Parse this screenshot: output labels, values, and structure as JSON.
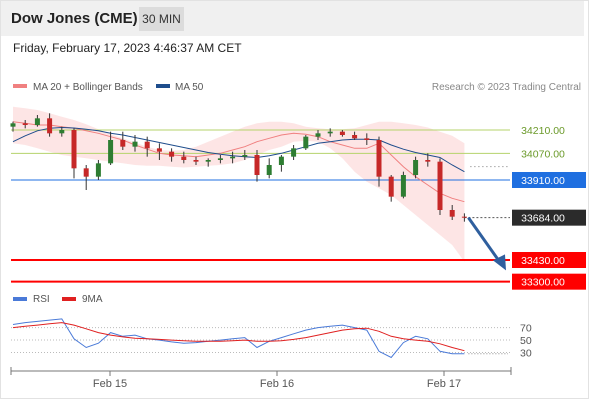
{
  "header": {
    "title": "Dow Jones (CME)",
    "interval": "30 MIN",
    "datetime": "Friday, February 17, 2023 4:46:37 AM CET"
  },
  "legend": {
    "ma20_label": "MA 20 + Bollinger Bands",
    "ma50_label": "MA 50",
    "copyright": "Research © 2023 Trading Central",
    "rsi_label": "RSI",
    "rsi_ma_label": "9MA"
  },
  "colors": {
    "candle_up": "#2e7d32",
    "candle_down": "#c62828",
    "ma20": "#f08080",
    "ma50": "#1e4d8c",
    "bollinger_fill": "#fde0e0",
    "resistance": "#b5d36b",
    "pivot": "#1f6fe0",
    "support": "#ff0000",
    "forecast_arrow": "#2f5f9e",
    "last_price_bg": "#2b2b2b",
    "rsi": "#4a7ad8",
    "rsi_ma": "#e02020"
  },
  "chart_data": [
    {
      "type": "candlestick",
      "title": "Dow Jones (CME)",
      "interval": "30 MIN",
      "x_labels": [
        "Feb 15",
        "Feb 16",
        "Feb 17"
      ],
      "ylim": [
        33250,
        34330
      ],
      "levels": [
        {
          "price": 34210,
          "label": "34210.00",
          "kind": "resistance"
        },
        {
          "price": 34070,
          "label": "34070.00",
          "kind": "resistance"
        },
        {
          "price": 33910,
          "label": "33910.00",
          "kind": "pivot"
        },
        {
          "price": 33684,
          "label": "33684.00",
          "kind": "last"
        },
        {
          "price": 33430,
          "label": "33430.00",
          "kind": "support"
        },
        {
          "price": 33300,
          "label": "33300.00",
          "kind": "support"
        }
      ],
      "forecast": {
        "from": 33684,
        "to": 33380,
        "direction": "down"
      },
      "series": [
        {
          "name": "MA 20 + Bollinger Bands",
          "indicator": "ma20",
          "values": [
            34260,
            34250,
            34240,
            34240,
            34230,
            34220,
            34205,
            34190,
            34170,
            34150,
            34120,
            34095,
            34070,
            34060,
            34055,
            34050,
            34060,
            34070,
            34090,
            34110,
            34140,
            34160,
            34180,
            34190,
            34185,
            34170,
            34140,
            34120,
            34100,
            34100,
            34130,
            34060,
            33990,
            33930,
            33880,
            33830,
            33800,
            33780
          ],
          "upper": [
            34350,
            34340,
            34330,
            34310,
            34290,
            34270,
            34245,
            34215,
            34185,
            34160,
            34135,
            34110,
            34090,
            34085,
            34090,
            34110,
            34140,
            34170,
            34200,
            34230,
            34250,
            34260,
            34260,
            34250,
            34230,
            34220,
            34215,
            34215,
            34220,
            34240,
            34260,
            34260,
            34250,
            34240,
            34225,
            34200,
            34175,
            34130
          ],
          "lower": [
            34130,
            34120,
            34100,
            34080,
            34060,
            34050,
            34040,
            34030,
            34020,
            34010,
            34000,
            33995,
            33995,
            33990,
            33985,
            33990,
            33995,
            34000,
            34010,
            34030,
            34060,
            34090,
            34110,
            34140,
            34145,
            34140,
            34100,
            34040,
            33960,
            33900,
            33860,
            33820,
            33760,
            33700,
            33640,
            33580,
            33520,
            33420
          ]
        },
        {
          "name": "MA 50",
          "indicator": "ma50",
          "values": [
            34140,
            34175,
            34205,
            34220,
            34225,
            34222,
            34215,
            34205,
            34190,
            34180,
            34165,
            34150,
            34135,
            34120,
            34105,
            34090,
            34075,
            34065,
            34055,
            34050,
            34045,
            34055,
            34070,
            34090,
            34110,
            34130,
            34140,
            34150,
            34155,
            34155,
            34150,
            34120,
            34095,
            34075,
            34060,
            34045,
            34000,
            33960
          ]
        }
      ],
      "candles": [
        {
          "o": 34230,
          "h": 34260,
          "l": 34200,
          "c": 34250
        },
        {
          "o": 34250,
          "h": 34270,
          "l": 34220,
          "c": 34240
        },
        {
          "o": 34240,
          "h": 34300,
          "l": 34230,
          "c": 34280
        },
        {
          "o": 34280,
          "h": 34310,
          "l": 34170,
          "c": 34190
        },
        {
          "o": 34190,
          "h": 34230,
          "l": 34170,
          "c": 34210
        },
        {
          "o": 34210,
          "h": 34220,
          "l": 33920,
          "c": 33980
        },
        {
          "o": 33980,
          "h": 34000,
          "l": 33850,
          "c": 33930
        },
        {
          "o": 33930,
          "h": 34030,
          "l": 33910,
          "c": 34010
        },
        {
          "o": 34010,
          "h": 34200,
          "l": 34000,
          "c": 34150
        },
        {
          "o": 34150,
          "h": 34200,
          "l": 34090,
          "c": 34110
        },
        {
          "o": 34110,
          "h": 34180,
          "l": 34080,
          "c": 34140
        },
        {
          "o": 34140,
          "h": 34170,
          "l": 34050,
          "c": 34100
        },
        {
          "o": 34100,
          "h": 34130,
          "l": 34030,
          "c": 34080
        },
        {
          "o": 34080,
          "h": 34100,
          "l": 34020,
          "c": 34050
        },
        {
          "o": 34050,
          "h": 34080,
          "l": 34010,
          "c": 34030
        },
        {
          "o": 34030,
          "h": 34050,
          "l": 34000,
          "c": 34020
        },
        {
          "o": 34020,
          "h": 34040,
          "l": 33990,
          "c": 34030
        },
        {
          "o": 34030,
          "h": 34060,
          "l": 34010,
          "c": 34040
        },
        {
          "o": 34040,
          "h": 34080,
          "l": 34010,
          "c": 34050
        },
        {
          "o": 34050,
          "h": 34090,
          "l": 34030,
          "c": 34060
        },
        {
          "o": 34060,
          "h": 34090,
          "l": 33900,
          "c": 33940
        },
        {
          "o": 33940,
          "h": 34040,
          "l": 33920,
          "c": 34000
        },
        {
          "o": 34000,
          "h": 34060,
          "l": 33960,
          "c": 34050
        },
        {
          "o": 34050,
          "h": 34120,
          "l": 34030,
          "c": 34100
        },
        {
          "o": 34100,
          "h": 34180,
          "l": 34090,
          "c": 34170
        },
        {
          "o": 34170,
          "h": 34210,
          "l": 34150,
          "c": 34190
        },
        {
          "o": 34190,
          "h": 34220,
          "l": 34170,
          "c": 34200
        },
        {
          "o": 34200,
          "h": 34210,
          "l": 34170,
          "c": 34180
        },
        {
          "o": 34180,
          "h": 34200,
          "l": 34150,
          "c": 34160
        },
        {
          "o": 34160,
          "h": 34190,
          "l": 34120,
          "c": 34150
        },
        {
          "o": 34150,
          "h": 34170,
          "l": 33870,
          "c": 33930
        },
        {
          "o": 33930,
          "h": 33940,
          "l": 33780,
          "c": 33810
        },
        {
          "o": 33810,
          "h": 33960,
          "l": 33800,
          "c": 33940
        },
        {
          "o": 33940,
          "h": 34050,
          "l": 33920,
          "c": 34030
        },
        {
          "o": 34030,
          "h": 34070,
          "l": 33990,
          "c": 34020
        },
        {
          "o": 34020,
          "h": 34040,
          "l": 33700,
          "c": 33730
        },
        {
          "o": 33730,
          "h": 33760,
          "l": 33670,
          "c": 33690
        },
        {
          "o": 33690,
          "h": 33710,
          "l": 33660,
          "c": 33684
        }
      ]
    },
    {
      "type": "line",
      "title": "RSI",
      "yticks": [
        "70",
        "50",
        "30"
      ],
      "ylim": [
        10,
        95
      ],
      "series": [
        {
          "name": "RSI",
          "values": [
            75,
            78,
            80,
            82,
            84,
            52,
            38,
            45,
            62,
            56,
            58,
            52,
            50,
            47,
            45,
            46,
            48,
            50,
            52,
            54,
            38,
            48,
            54,
            60,
            66,
            70,
            72,
            74,
            70,
            66,
            32,
            22,
            46,
            56,
            52,
            32,
            28,
            28
          ]
        },
        {
          "name": "9MA",
          "values": [
            70,
            72,
            74,
            76,
            78,
            74,
            68,
            62,
            58,
            55,
            53,
            52,
            51,
            50,
            49,
            48,
            48,
            48,
            49,
            50,
            48,
            48,
            49,
            51,
            54,
            58,
            62,
            66,
            68,
            69,
            64,
            56,
            52,
            50,
            48,
            44,
            38,
            33
          ]
        }
      ]
    }
  ]
}
